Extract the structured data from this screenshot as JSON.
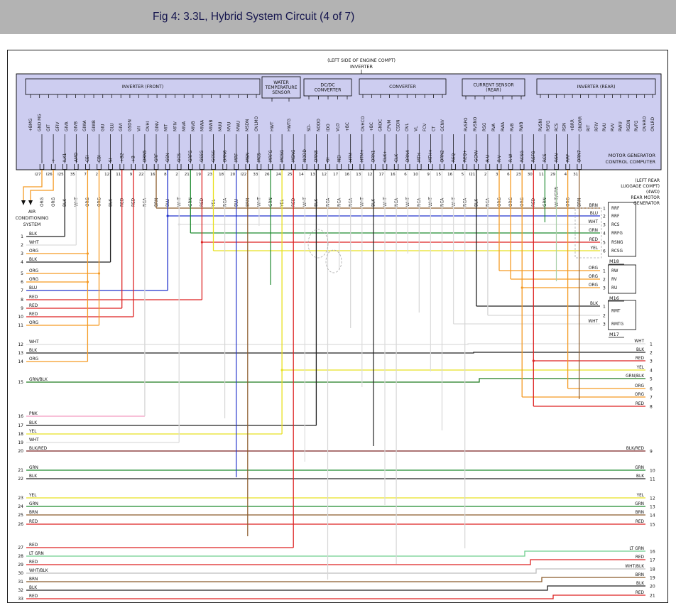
{
  "header": {
    "title": "Fig 4: 3.3L, Hybrid System Circuit (4 of 7)"
  },
  "diagram": {
    "top_note_lines": [
      "(LEFT SIDE OF ENGINE COMPT)",
      "INVERTER"
    ],
    "computer_label_lines": [
      "MOTOR GENERATOR",
      "CONTROL COMPUTER"
    ],
    "component_boxes": [
      {
        "label_lines": [
          "INVERTER (FRONT)"
        ],
        "pins": [
          "+BMG",
          "GND MG",
          "GIT",
          "GFIV",
          "GIVA",
          "GIVB",
          "GIWA",
          "GIWB",
          "GIU",
          "GLU",
          "GIVI",
          "GSDN",
          "VII",
          "OVHI",
          "GINV",
          "MIT",
          "MFIV",
          "MIVA",
          "MIVB",
          "MIWA",
          "MIWB",
          "MUU",
          "MVU",
          "MWU",
          "MSDN",
          "OVLMO"
        ]
      },
      {
        "label_lines": [
          "WATER",
          "TEMPERATURE",
          "SENSOR"
        ],
        "pins": [
          "HWT",
          "HWTG"
        ]
      },
      {
        "label_lines": [
          "DC/DC",
          "CONVERTER"
        ],
        "pins": [
          "SD-",
          "NODD",
          "IDO",
          "VLO",
          "+BC"
        ]
      },
      {
        "label_lines": [
          "CONVERTER"
        ],
        "pins": [
          "OVHCO",
          "+BC",
          "GNDC",
          "CPVM",
          "CSDN",
          "OVL",
          "VL",
          "FCV",
          "CT",
          "GCNV"
        ]
      },
      {
        "label_lines": [
          "CURRENT SENSOR",
          "(REAR)"
        ],
        "pins": [
          "RVSPO",
          "RVSNO",
          "RSG",
          "RVA",
          "RWA",
          "RVB",
          "RWB"
        ]
      },
      {
        "label_lines": [
          "INVERTER (REAR)"
        ],
        "pins": [
          "RVSNI",
          "RSFG",
          "RCS",
          "RSN",
          "+BRR",
          "GNDRR",
          "RIT",
          "RFIV",
          "RVU",
          "RVV",
          "RWU",
          "RSDN",
          "RVFG",
          "OVHRO",
          "OVLRD"
        ]
      }
    ],
    "bottom_pins": [
      {
        "label": "-",
        "num": "I27",
        "color": "ORG"
      },
      {
        "label": "+",
        "num": "I26",
        "color": "ORG"
      },
      {
        "label": "ILK1",
        "num": "I25",
        "color": "BLK"
      },
      {
        "label": "AMD",
        "num": "35",
        "color": "WHT"
      },
      {
        "label": "CEI",
        "num": "7",
        "color": "ORG"
      },
      {
        "label": "CBI",
        "num": "2",
        "color": "ORG"
      },
      {
        "label": "SI",
        "num": "12",
        "color": "BLK"
      },
      {
        "label": "+B2",
        "num": "11",
        "color": "RED"
      },
      {
        "label": "+B",
        "num": "9",
        "color": "RED"
      },
      {
        "label": "DRN5",
        "num": "22",
        "color": "NCA"
      },
      {
        "label": "GRF",
        "num": "16",
        "color": "BRN"
      },
      {
        "label": "GSN",
        "num": "8",
        "color": "BLU"
      },
      {
        "label": "GCS",
        "num": "2",
        "color": "WHT"
      },
      {
        "label": "GRFG",
        "num": "21",
        "color": "GRN"
      },
      {
        "label": "GSSG",
        "num": "19",
        "color": "RED"
      },
      {
        "label": "GCSG",
        "num": "23",
        "color": "YEL"
      },
      {
        "label": "DRN6",
        "num": "18",
        "color": "NCA"
      },
      {
        "label": "MRF",
        "num": "20",
        "color": "BLU"
      },
      {
        "label": "MSN",
        "num": "I22",
        "color": "BRN"
      },
      {
        "label": "MCS",
        "num": "33",
        "color": "WHT"
      },
      {
        "label": "MRFG",
        "num": "26",
        "color": "GRN"
      },
      {
        "label": "MCSG",
        "num": "24",
        "color": "YEL"
      },
      {
        "label": "MSNG",
        "num": "25",
        "color": "RED"
      },
      {
        "label": "NODD",
        "num": "14",
        "color": "WHT"
      },
      {
        "label": "DRN8",
        "num": "13",
        "color": "BLK"
      },
      {
        "label": "GI",
        "num": "12",
        "color": "NCA"
      },
      {
        "label": "NEI",
        "num": "17",
        "color": "NCA"
      },
      {
        "label": "HTM-",
        "num": "16",
        "color": "NCA"
      },
      {
        "label": "HTM+",
        "num": "13",
        "color": "WHT"
      },
      {
        "label": "DRN1",
        "num": "12",
        "color": "BLK"
      },
      {
        "label": "CLK+",
        "num": "17",
        "color": "WHT"
      },
      {
        "label": "CLK-",
        "num": "16",
        "color": "NCA"
      },
      {
        "label": "DRN4",
        "num": "6",
        "color": "WHT"
      },
      {
        "label": "MTH-",
        "num": "10",
        "color": "NCA"
      },
      {
        "label": "MTH+",
        "num": "9",
        "color": "WHT"
      },
      {
        "label": "DRN2",
        "num": "15",
        "color": "NCA"
      },
      {
        "label": "REQ-",
        "num": "16",
        "color": "WHT"
      },
      {
        "label": "REQ+",
        "num": "5",
        "color": "NCA"
      },
      {
        "label": "GCNV",
        "num": "I21",
        "color": "BLK"
      },
      {
        "label": "R-U",
        "num": "2",
        "color": "NCA"
      },
      {
        "label": "R-V",
        "num": "3",
        "color": "ORG"
      },
      {
        "label": "R-W",
        "num": "6",
        "color": "ORG"
      },
      {
        "label": "RCSG",
        "num": "23",
        "color": "ORG"
      },
      {
        "label": "RSFG",
        "num": "30",
        "color": "RED"
      },
      {
        "label": "RCS",
        "num": "11",
        "color": "GRN"
      },
      {
        "label": "RSN",
        "num": "29",
        "color": "WHT/GRN"
      },
      {
        "label": "RRF",
        "num": "4",
        "color": "ORG"
      },
      {
        "label": "DRN7",
        "num": "31",
        "color": "BRN"
      }
    ],
    "left_panel": {
      "title_lines": [
        "AIR",
        "CONDITIONING",
        "SYSTEM"
      ],
      "rows": [
        {
          "num": "1",
          "label": "BLK"
        },
        {
          "num": "2",
          "label": "WHT"
        },
        {
          "num": "3",
          "label": "ORG"
        },
        {
          "num": "4",
          "label": "BLK"
        },
        {
          "num": "5",
          "label": "ORG"
        },
        {
          "num": "6",
          "label": "ORG"
        },
        {
          "num": "7",
          "label": "BLU"
        },
        {
          "num": "8",
          "label": "RED"
        },
        {
          "num": "9",
          "label": "RED"
        },
        {
          "num": "10",
          "label": "RED"
        },
        {
          "num": "11",
          "label": "ORG"
        },
        {
          "num": "12",
          "label": "WHT"
        },
        {
          "num": "13",
          "label": "BLK"
        },
        {
          "num": "14",
          "label": "ORG"
        },
        {
          "num": "15",
          "label": "GRN/BLK"
        },
        {
          "num": "16",
          "label": "PNK"
        },
        {
          "num": "17",
          "label": "BLK"
        },
        {
          "num": "18",
          "label": "YEL"
        },
        {
          "num": "19",
          "label": "WHT"
        },
        {
          "num": "20",
          "label": "BLK/RED"
        },
        {
          "num": "21",
          "label": "GRN"
        },
        {
          "num": "22",
          "label": "BLK"
        },
        {
          "num": "23",
          "label": "YEL"
        },
        {
          "num": "24",
          "label": "GRN"
        },
        {
          "num": "25",
          "label": "BRN"
        },
        {
          "num": "26",
          "label": "RED"
        },
        {
          "num": "27",
          "label": "RED"
        },
        {
          "num": "28",
          "label": "LT GRN"
        },
        {
          "num": "29",
          "label": "RED"
        },
        {
          "num": "30",
          "label": "WHT/BLK"
        },
        {
          "num": "31",
          "label": "BRN"
        },
        {
          "num": "32",
          "label": "BLK"
        },
        {
          "num": "33",
          "label": "RED"
        }
      ]
    },
    "right_panel": {
      "header_lines": [
        "(LEFT REAR",
        "LUGGAGE COMPT)",
        "(4WD)",
        "REAR MOTOR",
        "GENERATOR"
      ],
      "groups": [
        {
          "id": "M18",
          "rows": [
            {
              "wire": "BRN",
              "num": "1"
            },
            {
              "wire": "BLU",
              "num": "2"
            },
            {
              "wire": "WHT",
              "num": "3"
            },
            {
              "wire": "GRN",
              "num": "4"
            },
            {
              "wire": "RED",
              "num": "5"
            },
            {
              "wire": "YEL",
              "num": "6"
            }
          ],
          "pins": [
            "RRF",
            "RRF",
            "RCS",
            "RRFG",
            "RSNG",
            "RCSG"
          ]
        },
        {
          "id": "M16",
          "rows": [
            {
              "wire": "ORG",
              "num": "1"
            },
            {
              "wire": "ORG",
              "num": "2"
            },
            {
              "wire": "ORG",
              "num": "3"
            }
          ],
          "pins": [
            "RW",
            "RV",
            "RU"
          ]
        },
        {
          "id": "M17",
          "rows": [
            {
              "wire": "BLK",
              "num": "1"
            },
            {
              "wire": "",
              "num": "2"
            },
            {
              "wire": "WHT",
              "num": "3"
            }
          ],
          "pins": [
            "RMT",
            "RMTG"
          ]
        }
      ],
      "column_rows": [
        {
          "wire": "WHT",
          "num": "1"
        },
        {
          "wire": "BLK",
          "num": "2"
        },
        {
          "wire": "RED",
          "num": "3"
        },
        {
          "wire": "YEL",
          "num": "4"
        },
        {
          "wire": "GRN/BLK",
          "num": "5"
        },
        {
          "wire": "ORG",
          "num": "6"
        },
        {
          "wire": "ORG",
          "num": "7"
        },
        {
          "wire": "RED",
          "num": "8"
        },
        {
          "wire": "BLK/RED",
          "num": "9"
        },
        {
          "wire": "GRN",
          "num": "10"
        },
        {
          "wire": "BLK",
          "num": "11"
        },
        {
          "wire": "YEL",
          "num": "12"
        },
        {
          "wire": "GRN",
          "num": "13"
        },
        {
          "wire": "BRN",
          "num": "14"
        },
        {
          "wire": "RED",
          "num": "15"
        },
        {
          "wire": "LT GRN",
          "num": "16"
        },
        {
          "wire": "RED",
          "num": "17"
        },
        {
          "wire": "WHT/BLK",
          "num": "18"
        },
        {
          "wire": "BRN",
          "num": "19"
        },
        {
          "wire": "BLK",
          "num": "20"
        },
        {
          "wire": "RED",
          "num": "21"
        }
      ]
    },
    "palette": {
      "lavender": "#cdcdf0",
      "titlebar_gray": "#b3b3b3",
      "title_text": "#15154e",
      "BLK": "#222222",
      "WHT": "#dcdcdc",
      "ORG": "#f59a23",
      "RED": "#dd2222",
      "BLU": "#2233cc",
      "GRN": "#1f8a2f",
      "YEL": "#e8e020",
      "BRN": "#8a5a2a",
      "PNK": "#f49ac1",
      "NCA": "#d6d6d6",
      "GRN/BLK": "#1f7a1f",
      "BLK/RED": "#7a2020",
      "LT GRN": "#6fcf8f",
      "WHT/BLK": "#bdbdbd",
      "WHT/GRN": "#a8cfa8"
    }
  }
}
